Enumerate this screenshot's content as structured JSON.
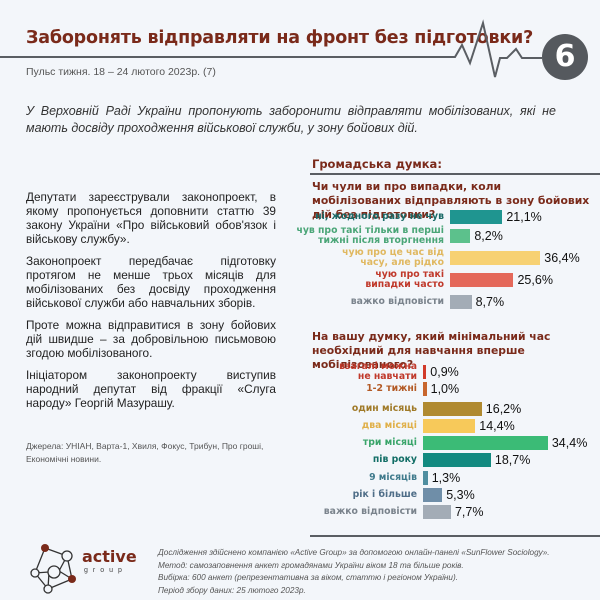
{
  "header": {
    "title": "Заборонять відправляти на фронт без підготовки?",
    "subtitle": "Пульс тижня. 18 – 24 лютого 2023р. (7)",
    "issue_number": "6"
  },
  "lead": "У Верховній Раді України пропонують заборонити відправляти мобілізованих, які не мають досвіду проходження військової служби, у зону бойових дій.",
  "body": {
    "paragraphs": [
      "Депутати зареєстрували законопроект, в якому пропонується доповнити статтю 39 закону України «Про військовий обов'язок і військову службу».",
      "Законопроект передбачає підготовку протягом не менше трьох місяців для мобілізованих без досвіду проходження військової служби або навчальних зборів.",
      "Проте можна відправитися в зону бойових дій швидше – за добровільною письмовою згодою мобілізованого.",
      "Ініціатором законопроекту виступив народний депутат від фракції «Слуга народу» Георгій Мазурашу."
    ],
    "sources": "Джерела: УНІАН, Варта-1, Хвиля, Фокус, Трибун, Про гроші, Економічні новини."
  },
  "opinion": {
    "title": "Громадська думка:"
  },
  "chart_data": [
    {
      "type": "bar",
      "orientation": "horizontal",
      "title": "Чи чули ви про випадки, коли мобілізованих відправляють в зону бойових дій без підготовки?",
      "categories": [
        "ні, жодного разу не чув",
        "чув про такі тільки в перші тижні після вторгнення",
        "чую про це час від часу, але рідко",
        "чую про такі випадки часто",
        "важко відповісти"
      ],
      "label_lines": [
        [
          "ні, жодного разу не чув"
        ],
        [
          "чув про такі тільки в перші",
          "тижні після вторгнення"
        ],
        [
          "чую про це час від",
          "часу, але рідко"
        ],
        [
          "чую про такі",
          "випадки часто"
        ],
        [
          "важко відповісти"
        ]
      ],
      "values": [
        21.1,
        8.2,
        36.4,
        25.6,
        8.7
      ],
      "value_labels": [
        "21,1%",
        "8,2%",
        "36,4%",
        "25,6%",
        "8,7%"
      ],
      "colors": [
        "#1f9590",
        "#5cc18c",
        "#f7d173",
        "#e4685a",
        "#a3acb6"
      ],
      "label_colors": [
        "#1a6a67",
        "#4aa577",
        "#e0b860",
        "#c0392b",
        "#7a838c"
      ],
      "unit": "%",
      "xlabel": "",
      "ylabel": ""
    },
    {
      "type": "bar",
      "orientation": "horizontal",
      "title": "На вашу думку, який мінімальний час необхідний для навчання вперше мобілізованого?",
      "categories": [
        "взагалі можна не навчати",
        "1-2 тижні",
        "один місяць",
        "два місяці",
        "три місяці",
        "пів року",
        "9 місяців",
        "рік і більше",
        "важко відповісти"
      ],
      "label_lines": [
        [
          "взагалі можна",
          "не навчати"
        ],
        [
          "1-2 тижні"
        ],
        [
          "один місяць"
        ],
        [
          "два місяці"
        ],
        [
          "три місяці"
        ],
        [
          "пів року"
        ],
        [
          "9 місяців"
        ],
        [
          "рік і більше"
        ],
        [
          "важко відповісти"
        ]
      ],
      "values": [
        0.9,
        1.0,
        16.2,
        14.4,
        34.4,
        18.7,
        1.3,
        5.3,
        7.7
      ],
      "value_labels": [
        "0,9%",
        "1,0%",
        "16,2%",
        "14,4%",
        "34,4%",
        "18,7%",
        "1,3%",
        "5,3%",
        "7,7%"
      ],
      "colors": [
        "#d13a2a",
        "#c8662d",
        "#b08a30",
        "#f7c95a",
        "#3bbb76",
        "#138a80",
        "#4f8ea0",
        "#6f8ea8",
        "#a3acb6"
      ],
      "label_colors": [
        "#c0392b",
        "#b35a25",
        "#a07a28",
        "#e0b04a",
        "#3aa56a",
        "#126e66",
        "#3f7a8c",
        "#4f6e88",
        "#7a838c"
      ],
      "unit": "%",
      "xlabel": "",
      "ylabel": ""
    }
  ],
  "footer": {
    "logo_word": "active",
    "logo_sub": "group",
    "lines": [
      "Дослідження здійснено компанією «Active Group» за допомогою онлайн-панелі «SunFlower Sociology».",
      "Метод: самозаповнення анкет громадянами України віком 18 та більше років.",
      "Вибірка: 600 анкет (репрезентативна за віком, статтю і регіоном України).",
      "Період збору даних: 25 лютого 2023р."
    ]
  }
}
